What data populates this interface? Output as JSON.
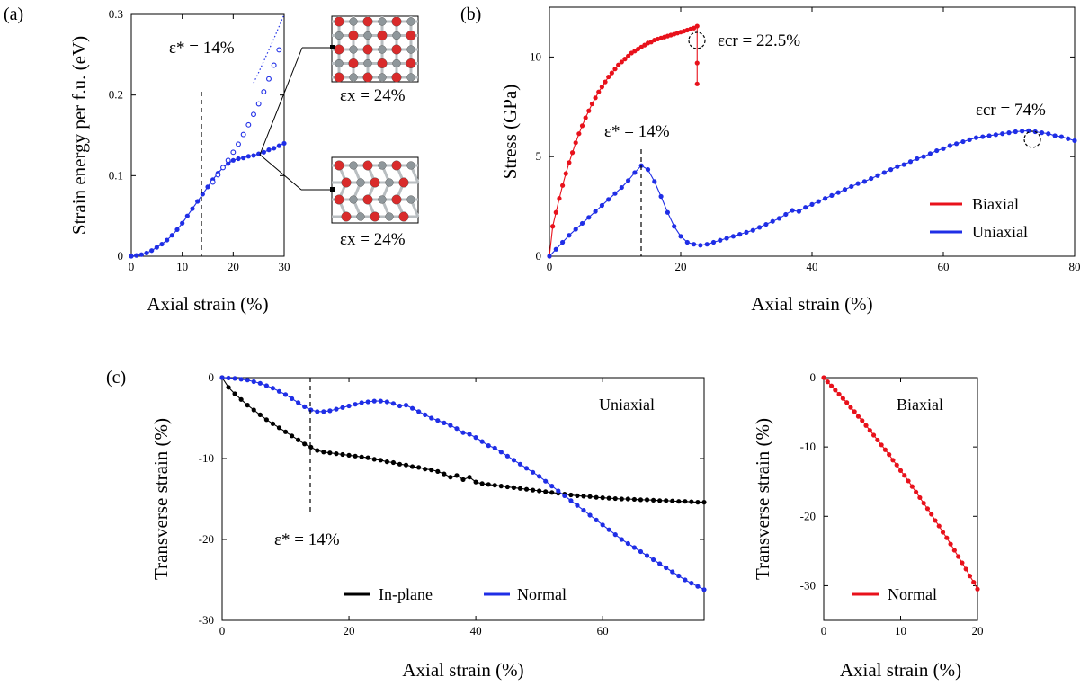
{
  "panels": {
    "a": "(a)",
    "b": "(b)",
    "c": "(c)"
  },
  "colors": {
    "red": "#e8111b",
    "blue": "#1f2ee6",
    "black": "#000000",
    "atom_red": "#d92b2b",
    "atom_gray": "#8f979b"
  },
  "icons": {
    "inset_top": "structure-inset-icon",
    "inset_bottom": "structure-inset-icon"
  },
  "annotations": {
    "a_eps_star": "ε* = 14%",
    "a_inset_top": "εx = 24%",
    "a_inset_bottom": "εx = 24%",
    "b_eps_cr_biaxial": "εcr = 22.5%",
    "b_eps_cr_uniaxial": "εcr = 74%",
    "b_eps_star": "ε* = 14%",
    "c_eps_star": "ε* = 14%",
    "c1_tag": "Uniaxial",
    "c2_tag": "Biaxial"
  },
  "chart_data": [
    {
      "id": "a",
      "type": "scatter",
      "xlabel": "Axial strain (%)",
      "ylabel": "Strain energy per f.u. (eV)",
      "xlim": [
        0,
        30
      ],
      "ylim": [
        0,
        0.3
      ],
      "xticks": [
        0,
        10,
        20,
        30
      ],
      "yticks": [
        0,
        0.1,
        0.2,
        0.3
      ],
      "ytick_labels": [
        "0",
        "0.1",
        "0.2",
        "0.3"
      ],
      "series": [
        {
          "color": "blue",
          "marker": "filled",
          "x": [
            0,
            1,
            2,
            3,
            4,
            5,
            6,
            7,
            8,
            9,
            10,
            11,
            12,
            13,
            14,
            15,
            16,
            17,
            18,
            19,
            20,
            21,
            22,
            23,
            24,
            25,
            26,
            27,
            28,
            29,
            30
          ],
          "y": [
            0,
            0.001,
            0.002,
            0.004,
            0.007,
            0.011,
            0.015,
            0.02,
            0.026,
            0.033,
            0.041,
            0.05,
            0.059,
            0.068,
            0.077,
            0.086,
            0.095,
            0.103,
            0.11,
            0.115,
            0.119,
            0.121,
            0.122,
            0.124,
            0.125,
            0.127,
            0.129,
            0.132,
            0.134,
            0.137,
            0.14
          ]
        },
        {
          "color": "blue",
          "marker": "open",
          "x": [
            16,
            17,
            18,
            19,
            20,
            21,
            22,
            23,
            24,
            25,
            26,
            27,
            28,
            29
          ],
          "y": [
            0.092,
            0.101,
            0.11,
            0.119,
            0.129,
            0.139,
            0.151,
            0.163,
            0.176,
            0.189,
            0.204,
            0.22,
            0.237,
            0.256
          ]
        },
        {
          "color": "blue",
          "marker": "dots",
          "x": [
            24,
            25,
            26,
            27,
            28,
            29,
            30
          ],
          "y": [
            0.215,
            0.228,
            0.242,
            0.256,
            0.27,
            0.285,
            0.3
          ]
        }
      ]
    },
    {
      "id": "b",
      "type": "line",
      "xlabel": "Axial strain (%)",
      "ylabel": "Stress (GPa)",
      "xlim": [
        0,
        80
      ],
      "ylim": [
        0,
        12.5
      ],
      "xticks": [
        0,
        20,
        40,
        60,
        80
      ],
      "yticks": [
        0,
        5,
        10
      ],
      "legend": "bottom-right",
      "series": [
        {
          "name": "Biaxial",
          "color": "red",
          "x": [
            0,
            0.5,
            1,
            1.5,
            2,
            2.5,
            3,
            3.5,
            4,
            4.5,
            5,
            5.5,
            6,
            6.5,
            7,
            7.5,
            8,
            8.5,
            9,
            9.5,
            10,
            10.5,
            11,
            11.5,
            12,
            12.5,
            13,
            13.5,
            14,
            14.5,
            15,
            15.5,
            16,
            16.5,
            17,
            17.5,
            18,
            18.5,
            19,
            19.5,
            20,
            20.5,
            21,
            21.5,
            22,
            22.5,
            22.5,
            22.5
          ],
          "y": [
            0,
            1.5,
            2.2,
            2.9,
            3.55,
            4.15,
            4.7,
            5.2,
            5.7,
            6.15,
            6.55,
            6.95,
            7.3,
            7.65,
            7.95,
            8.25,
            8.5,
            8.75,
            9,
            9.2,
            9.4,
            9.6,
            9.75,
            9.9,
            10.05,
            10.2,
            10.3,
            10.4,
            10.5,
            10.6,
            10.7,
            10.75,
            10.85,
            10.9,
            10.95,
            11,
            11.05,
            11.1,
            11.15,
            11.2,
            11.25,
            11.3,
            11.35,
            11.4,
            11.45,
            11.55,
            9.7,
            8.65
          ]
        },
        {
          "name": "Uniaxial",
          "color": "blue",
          "x": [
            0,
            1,
            2,
            3,
            4,
            5,
            6,
            7,
            8,
            9,
            10,
            11,
            12,
            13,
            14,
            15,
            16,
            17,
            18,
            19,
            20,
            21,
            22,
            23,
            24,
            25,
            26,
            27,
            28,
            29,
            30,
            31,
            32,
            33,
            34,
            35,
            36,
            37,
            38,
            39,
            40,
            41,
            42,
            43,
            44,
            45,
            46,
            47,
            48,
            49,
            50,
            51,
            52,
            53,
            54,
            55,
            56,
            57,
            58,
            59,
            60,
            61,
            62,
            63,
            64,
            65,
            66,
            67,
            68,
            69,
            70,
            71,
            72,
            73,
            74,
            75,
            76,
            77,
            78,
            79,
            80
          ],
          "y": [
            0,
            0.35,
            0.7,
            1.05,
            1.35,
            1.65,
            1.95,
            2.25,
            2.55,
            2.85,
            3.15,
            3.45,
            3.8,
            4.2,
            4.55,
            4.35,
            3.75,
            3.0,
            2.2,
            1.5,
            1.0,
            0.7,
            0.6,
            0.55,
            0.6,
            0.7,
            0.8,
            0.9,
            1.0,
            1.1,
            1.2,
            1.3,
            1.45,
            1.6,
            1.75,
            1.9,
            2.1,
            2.3,
            2.25,
            2.45,
            2.6,
            2.75,
            2.9,
            3.05,
            3.2,
            3.35,
            3.5,
            3.65,
            3.75,
            3.9,
            4.05,
            4.2,
            4.35,
            4.5,
            4.6,
            4.75,
            4.9,
            5.0,
            5.15,
            5.3,
            5.4,
            5.55,
            5.65,
            5.75,
            5.85,
            5.95,
            6.0,
            6.05,
            6.1,
            6.15,
            6.2,
            6.25,
            6.28,
            6.3,
            6.25,
            6.2,
            6.15,
            6.05,
            6.0,
            5.9,
            5.8
          ]
        }
      ]
    },
    {
      "id": "c1",
      "type": "line",
      "xlabel": "Axial strain (%)",
      "ylabel": "Transverse strain (%)",
      "xlim": [
        0,
        76
      ],
      "ylim": [
        -30,
        0
      ],
      "xticks": [
        0,
        20,
        40,
        60
      ],
      "yticks": [
        0,
        -10,
        -20,
        -30
      ],
      "legend": "bottom",
      "series": [
        {
          "name": "In-plane",
          "color": "black",
          "x": [
            0,
            1,
            2,
            3,
            4,
            5,
            6,
            7,
            8,
            9,
            10,
            11,
            12,
            13,
            14,
            15,
            16,
            17,
            18,
            19,
            20,
            21,
            22,
            23,
            24,
            25,
            26,
            27,
            28,
            29,
            30,
            31,
            32,
            33,
            34,
            35,
            36,
            37,
            38,
            39,
            40,
            41,
            42,
            43,
            44,
            45,
            46,
            47,
            48,
            49,
            50,
            51,
            52,
            53,
            54,
            55,
            56,
            57,
            58,
            59,
            60,
            61,
            62,
            63,
            64,
            65,
            66,
            67,
            68,
            69,
            70,
            71,
            72,
            73,
            74,
            75,
            76
          ],
          "y": [
            0,
            -1.2,
            -2.0,
            -2.7,
            -3.4,
            -4.0,
            -4.6,
            -5.2,
            -5.7,
            -6.2,
            -6.7,
            -7.2,
            -7.7,
            -8.2,
            -8.6,
            -9.0,
            -9.2,
            -9.3,
            -9.4,
            -9.5,
            -9.6,
            -9.7,
            -9.8,
            -9.9,
            -10.1,
            -10.2,
            -10.4,
            -10.5,
            -10.7,
            -10.8,
            -11.0,
            -11.1,
            -11.3,
            -11.4,
            -11.6,
            -11.9,
            -12.3,
            -12.1,
            -12.6,
            -12.3,
            -12.9,
            -13.1,
            -13.2,
            -13.3,
            -13.4,
            -13.5,
            -13.6,
            -13.7,
            -13.8,
            -13.9,
            -14.0,
            -14.1,
            -14.2,
            -14.3,
            -14.4,
            -14.5,
            -14.6,
            -14.65,
            -14.7,
            -14.8,
            -14.85,
            -14.9,
            -14.95,
            -15.0,
            -15.0,
            -15.05,
            -15.1,
            -15.1,
            -15.15,
            -15.2,
            -15.2,
            -15.25,
            -15.3,
            -15.3,
            -15.35,
            -15.4,
            -15.4
          ]
        },
        {
          "name": "Normal",
          "color": "blue",
          "x": [
            0,
            1,
            2,
            3,
            4,
            5,
            6,
            7,
            8,
            9,
            10,
            11,
            12,
            13,
            14,
            15,
            16,
            17,
            18,
            19,
            20,
            21,
            22,
            23,
            24,
            25,
            26,
            27,
            28,
            29,
            30,
            31,
            32,
            33,
            34,
            35,
            36,
            37,
            38,
            39,
            40,
            41,
            42,
            43,
            44,
            45,
            46,
            47,
            48,
            49,
            50,
            51,
            52,
            53,
            54,
            55,
            56,
            57,
            58,
            59,
            60,
            61,
            62,
            63,
            64,
            65,
            66,
            67,
            68,
            69,
            70,
            71,
            72,
            73,
            74,
            75,
            76
          ],
          "y": [
            0,
            -0.05,
            -0.1,
            -0.2,
            -0.3,
            -0.5,
            -0.7,
            -1.0,
            -1.3,
            -1.7,
            -2.1,
            -2.6,
            -3.1,
            -3.6,
            -4.0,
            -4.2,
            -4.2,
            -4.1,
            -3.9,
            -3.7,
            -3.5,
            -3.3,
            -3.1,
            -3.0,
            -2.9,
            -2.9,
            -3.0,
            -3.2,
            -3.5,
            -3.4,
            -3.8,
            -4.2,
            -4.6,
            -5.0,
            -5.3,
            -5.6,
            -5.9,
            -6.3,
            -6.8,
            -7.0,
            -7.4,
            -7.9,
            -8.4,
            -8.7,
            -9.2,
            -9.7,
            -10.2,
            -10.7,
            -11.2,
            -11.7,
            -12.2,
            -12.8,
            -13.4,
            -14.0,
            -14.6,
            -15.2,
            -15.8,
            -16.4,
            -17.0,
            -17.6,
            -18.2,
            -18.8,
            -19.4,
            -20.0,
            -20.5,
            -21.0,
            -21.5,
            -22.0,
            -22.5,
            -23.0,
            -23.5,
            -24.0,
            -24.5,
            -25.0,
            -25.4,
            -25.8,
            -26.2
          ]
        }
      ]
    },
    {
      "id": "c2",
      "type": "line",
      "xlabel": "Axial strain (%)",
      "ylabel": "Transverse strain (%)",
      "xlim": [
        0,
        20
      ],
      "ylim": [
        -35,
        0
      ],
      "xticks": [
        0,
        10,
        20
      ],
      "yticks": [
        0,
        -10,
        -20,
        -30
      ],
      "legend": "bottom",
      "series": [
        {
          "name": "Normal",
          "color": "red",
          "x": [
            0,
            0.5,
            1,
            1.5,
            2,
            2.5,
            3,
            3.5,
            4,
            4.5,
            5,
            5.5,
            6,
            6.5,
            7,
            7.5,
            8,
            8.5,
            9,
            9.5,
            10,
            10.5,
            11,
            11.5,
            12,
            12.5,
            13,
            13.5,
            14,
            14.5,
            15,
            15.5,
            16,
            16.5,
            17,
            17.5,
            18,
            18.5,
            19,
            19.5,
            20
          ],
          "y": [
            0,
            -0.6,
            -1.2,
            -1.8,
            -2.4,
            -3.0,
            -3.6,
            -4.3,
            -4.9,
            -5.6,
            -6.2,
            -6.9,
            -7.6,
            -8.3,
            -9.0,
            -9.7,
            -10.4,
            -11.1,
            -11.9,
            -12.6,
            -13.4,
            -14.1,
            -14.9,
            -15.7,
            -16.5,
            -17.3,
            -18.1,
            -18.9,
            -19.7,
            -20.6,
            -21.4,
            -22.3,
            -23.1,
            -24.0,
            -24.9,
            -25.8,
            -26.7,
            -27.6,
            -28.6,
            -29.5,
            -30.5
          ]
        }
      ]
    }
  ]
}
